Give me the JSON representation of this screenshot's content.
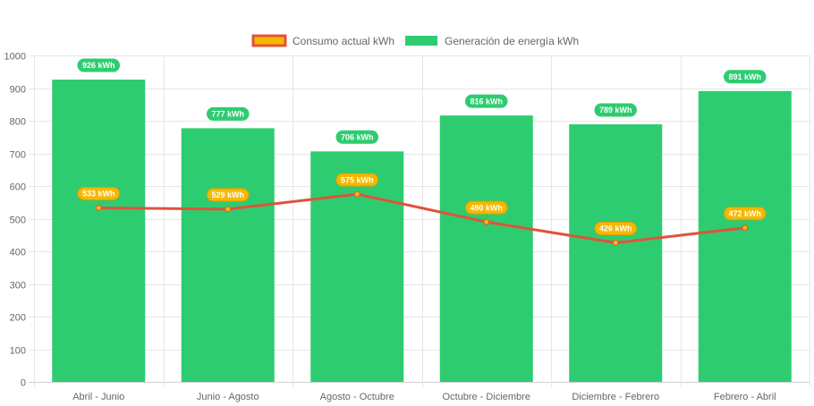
{
  "chart_data": {
    "type": "bar",
    "categories": [
      "Abril - Junio",
      "Junio - Agosto",
      "Agosto - Octubre",
      "Octubre - Diciembre",
      "Diciembre - Febrero",
      "Febrero - Abril"
    ],
    "series": [
      {
        "name": "Consumo actual kWh",
        "type": "line",
        "values": [
          533,
          529,
          575,
          490,
          426,
          472
        ],
        "labels": [
          "533 kWh",
          "529 kWh",
          "575 kWh",
          "490 kWh",
          "426 kWh",
          "472 kWh"
        ],
        "color": "#e0533a",
        "fill_color": "#f5b800",
        "label_color": "#f5b800"
      },
      {
        "name": "Generación de energía kWh",
        "type": "bar",
        "values": [
          926,
          777,
          706,
          816,
          789,
          891
        ],
        "labels": [
          "926 kWh",
          "777 kWh",
          "706 kWh",
          "816 kWh",
          "789 kWh",
          "891 kWh"
        ],
        "color": "#2ecc71",
        "label_color": "#2ecc71"
      }
    ],
    "ylim": [
      0,
      1000
    ],
    "yticks": [
      0,
      100,
      200,
      300,
      400,
      500,
      600,
      700,
      800,
      900,
      1000
    ],
    "grid": true,
    "legend": "top-center",
    "title": "",
    "xlabel": "",
    "ylabel": ""
  }
}
